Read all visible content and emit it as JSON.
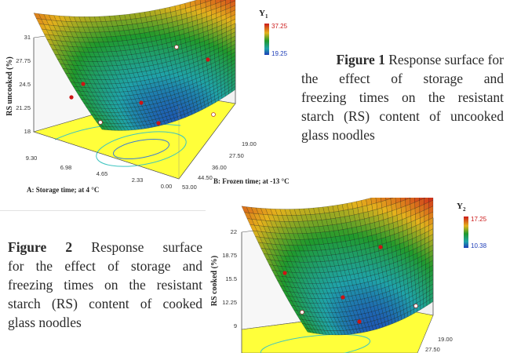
{
  "chart_data": [
    {
      "type": "surface",
      "legend_title": "Y",
      "legend_sub": "1",
      "legend_max": "37.25",
      "legend_min": "19.25",
      "ylabel": "RS uncooked (%)",
      "xlabel": "A: Storage time; at 4 °C",
      "zlabel": "B: Frozen time; at -13 °C",
      "yticks": [
        "31",
        "27.75",
        "24.5",
        "21.25",
        "18"
      ],
      "xticks": [
        "9.30",
        "6.98",
        "4.65",
        "2.33",
        "0.00"
      ],
      "zticks": [
        "19.00",
        "27.50",
        "36.00",
        "44.50",
        "53.00"
      ]
    },
    {
      "type": "surface",
      "legend_title": "Y",
      "legend_sub": "2",
      "legend_max": "17.25",
      "legend_min": "10.38",
      "ylabel": "RS cooked (%)",
      "yticks": [
        "22",
        "18.75",
        "15.5",
        "12.25",
        "9"
      ],
      "zticks": [
        "19.00",
        "27.50"
      ]
    }
  ],
  "captions": {
    "fig1": {
      "label": "Figure 1",
      "lines": [
        "Response surface for",
        "the effect of storage and",
        "freezing times on the resistant",
        "starch (RS) content of uncooked",
        "glass noodles"
      ]
    },
    "fig2": {
      "label": "Figure 2",
      "lines": [
        "Response surface",
        "for the effect of storage and",
        "freezing times on the resistant",
        "starch (RS) content of cooked",
        "glass noodles"
      ]
    }
  }
}
